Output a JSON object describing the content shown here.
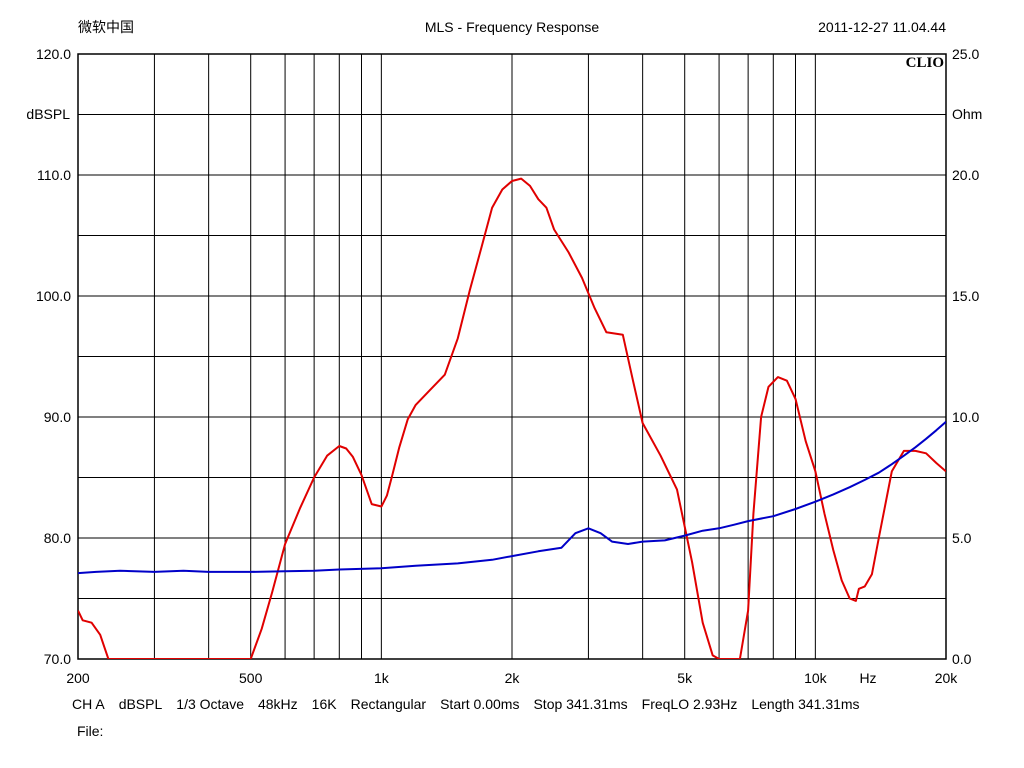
{
  "header": {
    "left_text": "微软中国",
    "title": "MLS - Frequency Response",
    "timestamp": "2011-12-27 11.04.44",
    "brand": "CLIO"
  },
  "footer": {
    "items": [
      "CH A",
      "dBSPL",
      "1/3 Octave",
      "48kHz",
      "16K",
      "Rectangular",
      "Start 0.00ms",
      "Stop 341.31ms",
      "FreqLO 2.93Hz",
      "Length 341.31ms"
    ],
    "file_label": "File:"
  },
  "colors": {
    "spl_curve": "#e00000",
    "impedance_curve": "#0000c8",
    "grid": "#000000"
  },
  "chart_data": {
    "type": "line",
    "xscale": "log",
    "xlim": [
      200,
      20000
    ],
    "ylim": [
      70,
      120
    ],
    "y2lim": [
      0,
      25
    ],
    "ylabel": "dBSPL",
    "y2label": "Ohm",
    "xlabel": "Hz",
    "grid": true,
    "x_ticks": [
      200,
      500,
      1000,
      2000,
      5000,
      10000,
      20000
    ],
    "x_tick_labels": [
      "200",
      "500",
      "1k",
      "2k",
      "5k",
      "10k",
      "20k"
    ],
    "y_ticks": [
      70,
      80,
      90,
      100,
      110,
      120
    ],
    "y_tick_labels": [
      "70.0",
      "80.0",
      "90.0",
      "100.0",
      "110.0",
      "120.0"
    ],
    "y2_ticks": [
      0,
      5,
      10,
      15,
      20,
      25
    ],
    "y2_tick_labels": [
      "0.0",
      "5.0",
      "10.0",
      "15.0",
      "20.0",
      "25.0"
    ],
    "series": [
      {
        "axis": "left",
        "color": "#e00000",
        "x": [
          200,
          205,
          215,
          225,
          230,
          235,
          500,
          530,
          560,
          600,
          650,
          700,
          750,
          800,
          830,
          860,
          900,
          950,
          1000,
          1030,
          1060,
          1100,
          1150,
          1200,
          1300,
          1400,
          1500,
          1600,
          1700,
          1800,
          1900,
          2000,
          2100,
          2200,
          2300,
          2400,
          2500,
          2700,
          2900,
          3100,
          3300,
          3600,
          3800,
          4000,
          4400,
          4800,
          5200,
          5500,
          5800,
          6000,
          6300,
          6700,
          7000,
          7200,
          7500,
          7800,
          8200,
          8600,
          9000,
          9500,
          10000,
          10500,
          11000,
          11500,
          12000,
          12400,
          12600,
          13000,
          13500,
          14000,
          15000,
          16000,
          17000,
          18000,
          19000,
          20000
        ],
        "y": [
          74,
          73.2,
          73,
          72,
          71,
          70,
          70,
          72.5,
          75.5,
          79.5,
          82.5,
          85,
          86.8,
          87.6,
          87.4,
          86.7,
          85.2,
          82.8,
          82.6,
          83.5,
          85.2,
          87.5,
          89.8,
          91,
          92.3,
          93.5,
          96.5,
          100.5,
          104,
          107.3,
          108.8,
          109.5,
          109.7,
          109.1,
          108,
          107.3,
          105.5,
          103.6,
          101.5,
          99,
          97,
          96.8,
          93,
          89.5,
          86.8,
          84,
          78,
          73,
          70.3,
          70,
          70,
          70,
          74,
          82,
          90,
          92.5,
          93.3,
          93,
          91.5,
          88,
          85.5,
          82,
          79,
          76.5,
          75,
          74.8,
          75.8,
          76,
          77,
          80,
          85.5,
          87.2,
          87.2,
          87,
          86.2,
          85.5
        ]
      },
      {
        "axis": "right",
        "color": "#0000c8",
        "x": [
          200,
          220,
          250,
          300,
          350,
          400,
          500,
          600,
          700,
          800,
          1000,
          1200,
          1500,
          1800,
          2000,
          2300,
          2600,
          2800,
          3000,
          3200,
          3400,
          3700,
          4000,
          4500,
          5000,
          5500,
          6000,
          6500,
          7000,
          8000,
          9000,
          10000,
          11000,
          12000,
          13000,
          14000,
          15000,
          16000,
          17000,
          18000,
          19000,
          20000
        ],
        "y": [
          3.55,
          3.6,
          3.65,
          3.6,
          3.65,
          3.6,
          3.6,
          3.63,
          3.65,
          3.7,
          3.75,
          3.85,
          3.95,
          4.1,
          4.25,
          4.45,
          4.6,
          5.2,
          5.4,
          5.2,
          4.85,
          4.75,
          4.85,
          4.9,
          5.1,
          5.3,
          5.4,
          5.55,
          5.7,
          5.9,
          6.2,
          6.5,
          6.8,
          7.1,
          7.4,
          7.7,
          8.05,
          8.4,
          8.75,
          9.1,
          9.45,
          9.8
        ]
      }
    ]
  }
}
